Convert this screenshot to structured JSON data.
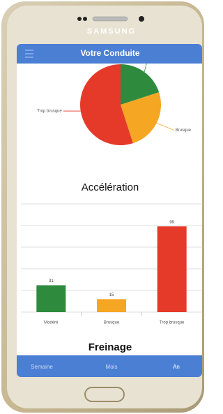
{
  "device": {
    "brand": "SAMSUNG"
  },
  "header": {
    "title": "Votre Conduite"
  },
  "pie_chart": {
    "type": "pie",
    "categories": [
      null,
      "Brusque",
      "Trop brusque"
    ],
    "values": [
      20,
      25,
      55
    ],
    "colors": [
      "#2e8b3e",
      "#f5a623",
      "#e53a2a"
    ]
  },
  "chart_data": {
    "type": "bar",
    "title": "Accélération",
    "categories": [
      "Modéré",
      "Brusque",
      "Trop brusque"
    ],
    "values": [
      31,
      15,
      99
    ],
    "colors": [
      "#2e8b3e",
      "#f5a623",
      "#e53a2a"
    ],
    "ylim": [
      0,
      125
    ],
    "yticks": [
      0,
      25,
      50,
      75,
      100,
      125
    ],
    "grid": true
  },
  "next_section": {
    "title": "Freinage"
  },
  "tabs": [
    "Semaine",
    "Mois",
    "An"
  ]
}
